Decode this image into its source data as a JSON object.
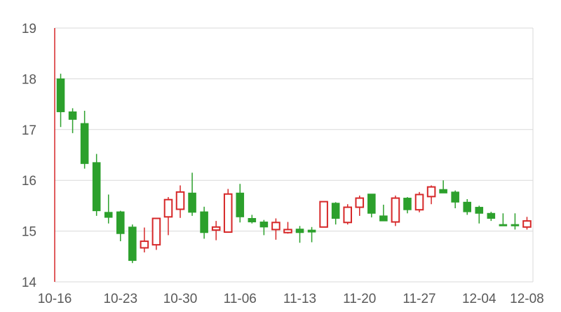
{
  "chart_data": {
    "type": "candlestick",
    "title": "",
    "xlabel": "",
    "ylabel": "",
    "ylim": [
      14,
      19
    ],
    "yticks": [
      14,
      15,
      16,
      17,
      18,
      19
    ],
    "xtick_labels": [
      "10-16",
      "10-23",
      "10-30",
      "11-06",
      "11-13",
      "11-20",
      "11-27",
      "12-04",
      "12-08"
    ],
    "grid": true,
    "colors": {
      "up": "#d62728",
      "down": "#2ca02c",
      "grid": "#d9d9d9",
      "text": "#595959",
      "highlight": "#d62728"
    },
    "highlight_marker": "10-16",
    "candles": [
      {
        "date": "10-16",
        "open": 18.0,
        "high": 18.1,
        "low": 17.05,
        "close": 17.35
      },
      {
        "date": "10-17",
        "open": 17.35,
        "high": 17.42,
        "low": 16.93,
        "close": 17.2
      },
      {
        "date": "10-18",
        "open": 17.12,
        "high": 17.37,
        "low": 16.23,
        "close": 16.33
      },
      {
        "date": "10-19",
        "open": 16.35,
        "high": 16.52,
        "low": 15.3,
        "close": 15.4
      },
      {
        "date": "10-20",
        "open": 15.37,
        "high": 15.72,
        "low": 15.15,
        "close": 15.27
      },
      {
        "date": "10-23",
        "open": 15.38,
        "high": 15.4,
        "low": 14.8,
        "close": 14.95
      },
      {
        "date": "10-24",
        "open": 15.08,
        "high": 15.13,
        "low": 14.37,
        "close": 14.42
      },
      {
        "date": "10-25",
        "open": 14.67,
        "high": 15.07,
        "low": 14.58,
        "close": 14.8
      },
      {
        "date": "10-26",
        "open": 14.73,
        "high": 15.25,
        "low": 14.63,
        "close": 15.25
      },
      {
        "date": "10-27",
        "open": 15.28,
        "high": 15.67,
        "low": 14.92,
        "close": 15.62
      },
      {
        "date": "10-30",
        "open": 15.43,
        "high": 15.9,
        "low": 15.26,
        "close": 15.77
      },
      {
        "date": "10-31",
        "open": 15.75,
        "high": 16.15,
        "low": 15.3,
        "close": 15.37
      },
      {
        "date": "11-01",
        "open": 15.38,
        "high": 15.48,
        "low": 14.85,
        "close": 14.97
      },
      {
        "date": "11-02",
        "open": 15.02,
        "high": 15.2,
        "low": 14.82,
        "close": 15.08
      },
      {
        "date": "11-03",
        "open": 14.98,
        "high": 15.83,
        "low": 14.98,
        "close": 15.73
      },
      {
        "date": "11-06",
        "open": 15.75,
        "high": 15.93,
        "low": 15.17,
        "close": 15.28
      },
      {
        "date": "11-07",
        "open": 15.25,
        "high": 15.32,
        "low": 15.15,
        "close": 15.18
      },
      {
        "date": "11-08",
        "open": 15.18,
        "high": 15.22,
        "low": 14.92,
        "close": 15.08
      },
      {
        "date": "11-09",
        "open": 15.03,
        "high": 15.25,
        "low": 14.83,
        "close": 15.17
      },
      {
        "date": "11-10",
        "open": 14.97,
        "high": 15.18,
        "low": 14.95,
        "close": 15.03
      },
      {
        "date": "11-13",
        "open": 15.04,
        "high": 15.1,
        "low": 14.77,
        "close": 14.97
      },
      {
        "date": "11-14",
        "open": 15.02,
        "high": 15.08,
        "low": 14.78,
        "close": 14.98
      },
      {
        "date": "11-15",
        "open": 15.08,
        "high": 15.58,
        "low": 15.08,
        "close": 15.58
      },
      {
        "date": "11-16",
        "open": 15.55,
        "high": 15.57,
        "low": 15.13,
        "close": 15.25
      },
      {
        "date": "11-17",
        "open": 15.17,
        "high": 15.53,
        "low": 15.13,
        "close": 15.47
      },
      {
        "date": "11-20",
        "open": 15.47,
        "high": 15.7,
        "low": 15.3,
        "close": 15.65
      },
      {
        "date": "11-21",
        "open": 15.73,
        "high": 15.73,
        "low": 15.27,
        "close": 15.35
      },
      {
        "date": "11-22",
        "open": 15.3,
        "high": 15.52,
        "low": 15.2,
        "close": 15.2
      },
      {
        "date": "11-23",
        "open": 15.18,
        "high": 15.7,
        "low": 15.1,
        "close": 15.65
      },
      {
        "date": "11-24",
        "open": 15.65,
        "high": 15.67,
        "low": 15.35,
        "close": 15.42
      },
      {
        "date": "11-27",
        "open": 15.42,
        "high": 15.77,
        "low": 15.37,
        "close": 15.72
      },
      {
        "date": "11-28",
        "open": 15.68,
        "high": 15.9,
        "low": 15.53,
        "close": 15.87
      },
      {
        "date": "11-29",
        "open": 15.82,
        "high": 16.0,
        "low": 15.75,
        "close": 15.75
      },
      {
        "date": "11-30",
        "open": 15.77,
        "high": 15.8,
        "low": 15.45,
        "close": 15.57
      },
      {
        "date": "12-01",
        "open": 15.57,
        "high": 15.63,
        "low": 15.32,
        "close": 15.38
      },
      {
        "date": "12-04",
        "open": 15.47,
        "high": 15.5,
        "low": 15.15,
        "close": 15.35
      },
      {
        "date": "12-05",
        "open": 15.35,
        "high": 15.38,
        "low": 15.2,
        "close": 15.25
      },
      {
        "date": "12-06",
        "open": 15.13,
        "high": 15.35,
        "low": 15.1,
        "close": 15.12
      },
      {
        "date": "12-07",
        "open": 15.13,
        "high": 15.35,
        "low": 15.03,
        "close": 15.12
      },
      {
        "date": "12-08",
        "open": 15.08,
        "high": 15.28,
        "low": 15.03,
        "close": 15.2
      }
    ]
  }
}
